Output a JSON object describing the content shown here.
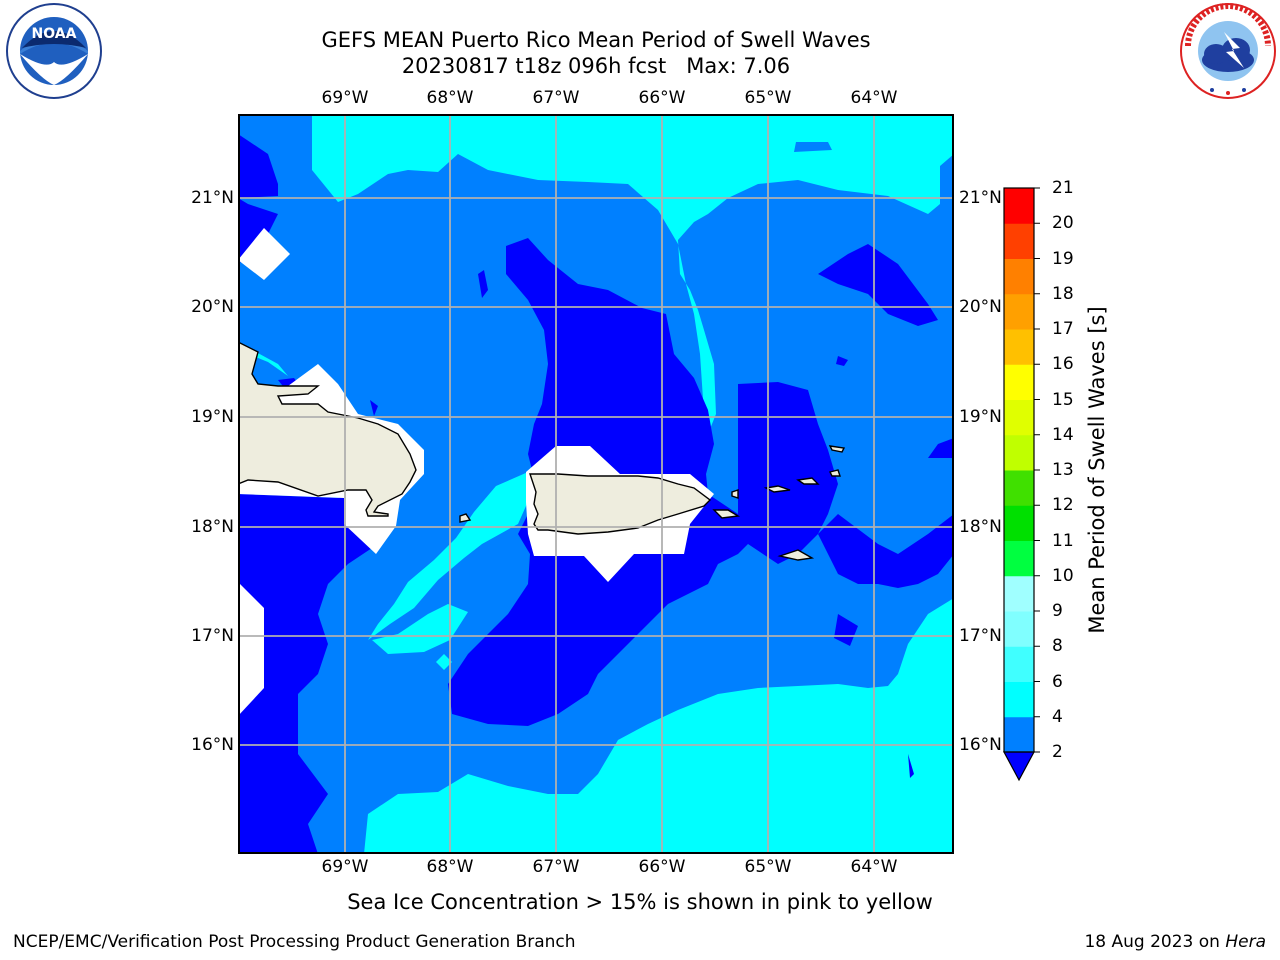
{
  "header": {
    "title_line1": "GEFS MEAN Puerto Rico Mean Period of Swell Waves",
    "title_line2": "20230817 t18z 096h fcst   Max: 7.06"
  },
  "logos": {
    "left": {
      "name": "noaa-logo",
      "text": "NOAA",
      "ring_text": "NATIONAL OCEANIC AND ATMOSPHERIC ADMINISTRATION · U.S. DEPARTMENT OF COMMERCE"
    },
    "right": {
      "name": "nws-logo",
      "ring_text": "NATIONAL WEATHER SERVICE"
    }
  },
  "map": {
    "lon_labels": [
      "69°W",
      "68°W",
      "67°W",
      "66°W",
      "65°W",
      "64°W"
    ],
    "lat_labels": [
      "21°N",
      "20°N",
      "19°N",
      "18°N",
      "17°N",
      "16°N"
    ],
    "extent": {
      "lon_min": -70.0,
      "lon_max": -63.25,
      "lat_min": 15.0,
      "lat_max": 21.75
    },
    "colors": {
      "land": "#eeedde",
      "missing": "#ffffff",
      "band_2_4": "#0000ff",
      "band_4_6": "#0080ff",
      "band_6_8": "#00ffff",
      "grid": "#b0b0b0",
      "coast": "#000000"
    }
  },
  "colorbar": {
    "title": "Mean Period of Swell Waves [s]",
    "ticks": [
      "2",
      "4",
      "6",
      "8",
      "9",
      "10",
      "11",
      "12",
      "13",
      "14",
      "15",
      "16",
      "17",
      "18",
      "19",
      "20",
      "21"
    ],
    "colors": [
      "#0000ff",
      "#0080ff",
      "#00ffff",
      "#40ffff",
      "#80ffff",
      "#a0ffff",
      "#40ff80",
      "#00ff40",
      "#00e000",
      "#40e000",
      "#80e000",
      "#c0ff00",
      "#e0ff00",
      "#ffff00",
      "#ffe000",
      "#ffc000",
      "#ffa000",
      "#ff8000",
      "#ff6000",
      "#ff4000",
      "#ff0000"
    ],
    "extend_color": "#0000ff"
  },
  "caption": "Sea Ice Concentration > 15% is shown in pink to yellow",
  "footer": {
    "left": "NCEP/EMC/Verification Post Processing Product Generation Branch",
    "right_prefix": "18 Aug 2023 on ",
    "right_host": "Hera"
  }
}
